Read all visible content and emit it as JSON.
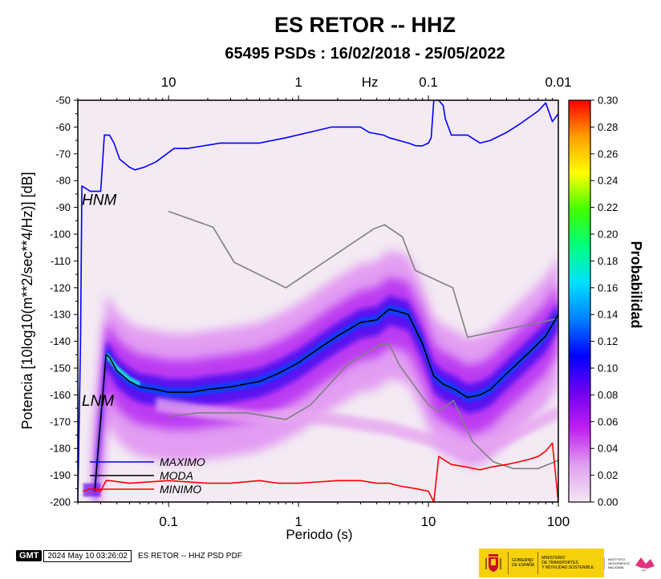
{
  "chart_data": {
    "type": "heatmap",
    "title": "ES RETOR -- HHZ",
    "subtitle": "65495 PSDs : 16/02/2018 - 25/05/2022",
    "xlabel": "Periodo (s)",
    "ylabel": "Potencia [10log10(m**2/sec**4/Hz)] [dB]",
    "x_scale": "log",
    "xlim": [
      0.02,
      100
    ],
    "ylim": [
      -200,
      -50
    ],
    "x_ticks": [
      {
        "v": 0.1,
        "label": "0.1"
      },
      {
        "v": 1,
        "label": "1"
      },
      {
        "v": 10,
        "label": "10"
      },
      {
        "v": 100,
        "label": "100"
      }
    ],
    "y_ticks": [
      -50,
      -60,
      -70,
      -80,
      -90,
      -100,
      -110,
      -120,
      -130,
      -140,
      -150,
      -160,
      -170,
      -180,
      -190,
      -200
    ],
    "top_axis": {
      "unit_label": "Hz",
      "ticks": [
        {
          "label": "10",
          "period": 0.1
        },
        {
          "label": "1",
          "period": 1
        },
        {
          "label": "0.1",
          "period": 10
        },
        {
          "label": "0.01",
          "period": 100
        }
      ]
    },
    "colorbar": {
      "label": "Probabilidad",
      "range": [
        0,
        0.3
      ],
      "ticks": [
        "0.30",
        "0.28",
        "0.26",
        "0.24",
        "0.22",
        "0.20",
        "0.18",
        "0.16",
        "0.14",
        "0.12",
        "0.10",
        "0.08",
        "0.06",
        "0.04",
        "0.02",
        "0.00"
      ],
      "colors": [
        "#f3e8f3",
        "#e0a0f0",
        "#c020f0",
        "#7000f0",
        "#0000ff",
        "#0080ff",
        "#00e0ff",
        "#00ff80",
        "#40ff00",
        "#ffff00",
        "#ffa000",
        "#ff0000"
      ]
    },
    "model_labels": [
      "HNM",
      "LNM"
    ],
    "series": [
      {
        "name": "MAXIMO",
        "color": "#0000ff",
        "x": [
          0.02,
          0.021,
          0.0215,
          0.025,
          0.03,
          0.032,
          0.035,
          0.038,
          0.042,
          0.05,
          0.055,
          0.065,
          0.08,
          0.11,
          0.14,
          0.25,
          0.5,
          0.8,
          1.2,
          1.8,
          2.2,
          3.0,
          3.5,
          4.5,
          5.0,
          7.0,
          8.0,
          9.0,
          10.0,
          10.5,
          11.0,
          12.0,
          13.0,
          13.5,
          15.0,
          20.0,
          25.0,
          30.0,
          40.0,
          50.0,
          70.0,
          80.0,
          90.0,
          100.0
        ],
        "y": [
          -200,
          -140,
          -82,
          -84,
          -84,
          -63,
          -63,
          -66,
          -72,
          -75,
          -76,
          -75,
          -73,
          -68,
          -68,
          -66,
          -66,
          -64,
          -62,
          -60,
          -60,
          -60,
          -62,
          -63,
          -64,
          -66,
          -67,
          -67,
          -66,
          -64,
          -50,
          -50,
          -52,
          -57,
          -63,
          -63,
          -66,
          -65,
          -62,
          -59,
          -54,
          -51,
          -58,
          -55
        ]
      },
      {
        "name": "MODA",
        "color": "#000000",
        "x": [
          0.027,
          0.033,
          0.035,
          0.04,
          0.05,
          0.06,
          0.08,
          0.1,
          0.15,
          0.2,
          0.3,
          0.5,
          0.7,
          1.0,
          1.5,
          2.0,
          3.0,
          4.0,
          5.0,
          6.0,
          7.0,
          9.0,
          11.0,
          13.0,
          16.0,
          20.0,
          25.0,
          30.0,
          40.0,
          60.0,
          80.0,
          100.0
        ],
        "y": [
          -196,
          -145,
          -146,
          -151,
          -155,
          -157,
          -158,
          -159,
          -159,
          -158,
          -157,
          -155,
          -152,
          -148,
          -142,
          -138,
          -133,
          -132,
          -128,
          -129,
          -130,
          -141,
          -153,
          -156,
          -158,
          -161,
          -160,
          -158,
          -152,
          -144,
          -138,
          -130
        ]
      },
      {
        "name": "MINIMO",
        "color": "#ff0000",
        "x": [
          0.022,
          0.025,
          0.03,
          0.033,
          0.035,
          0.05,
          0.1,
          0.2,
          0.3,
          0.5,
          0.7,
          1.0,
          2.0,
          3.0,
          4.0,
          5.0,
          6.0,
          8.0,
          10.0,
          11.0,
          12.0,
          15.0,
          20.0,
          25.0,
          30.0,
          40.0,
          50.0,
          60.0,
          70.0,
          80.0,
          90.0,
          100.0
        ],
        "y": [
          -196,
          -195,
          -196,
          -192,
          -192,
          -193,
          -192,
          -193,
          -193,
          -192,
          -193,
          -193,
          -192,
          -192,
          -193,
          -193,
          -194,
          -195,
          -196,
          -200,
          -183,
          -186,
          -187,
          -188,
          -187,
          -186,
          -185,
          -184,
          -183,
          -181,
          -178,
          -200
        ]
      }
    ],
    "noise_models": {
      "color": "#808080",
      "hnm": {
        "x": [
          0.1,
          0.22,
          0.32,
          0.8,
          3.8,
          4.6,
          6.3,
          7.9,
          15.4,
          20.0,
          100.0
        ],
        "y": [
          -91.5,
          -97.4,
          -110.5,
          -120,
          -98,
          -96.5,
          -101,
          -113.5,
          -120,
          -138.5,
          -131.5
        ]
      },
      "lnm": {
        "x": [
          0.1,
          0.17,
          0.4,
          0.8,
          1.24,
          2.4,
          4.3,
          5.0,
          6.0,
          10.0,
          12.0,
          15.6,
          21.9,
          31.6,
          45.0,
          70.0,
          100.0
        ],
        "y": [
          -168,
          -166.7,
          -166.7,
          -169.2,
          -163.7,
          -148.6,
          -141.1,
          -141.1,
          -149.0,
          -163.8,
          -166.2,
          -162.1,
          -177.5,
          -185.0,
          -187.5,
          -187.5,
          -184.4
        ]
      }
    },
    "legend": {
      "position": "bottom-left",
      "entries": [
        "MAXIMO",
        "MODA",
        "MINIMO"
      ]
    }
  },
  "footer": {
    "logo": "GMT",
    "timestamp": "2024 May 10 03:26:02",
    "caption": "ES RETOR -- HHZ PSD PDF"
  },
  "logos": {
    "gov_line1": "GOBIERNO",
    "gov_line2": "DE ESPAÑA",
    "ministry_line1": "MINISTERIO",
    "ministry_line2": "DE TRANSPORTES",
    "ministry_line3": "Y MOVILIDAD SOSTENIBLE",
    "ign_line1": "INSTITUTO",
    "ign_line2": "GEOGRÁFICO",
    "ign_line3": "NACIONAL",
    "ign_mark": "ign"
  }
}
